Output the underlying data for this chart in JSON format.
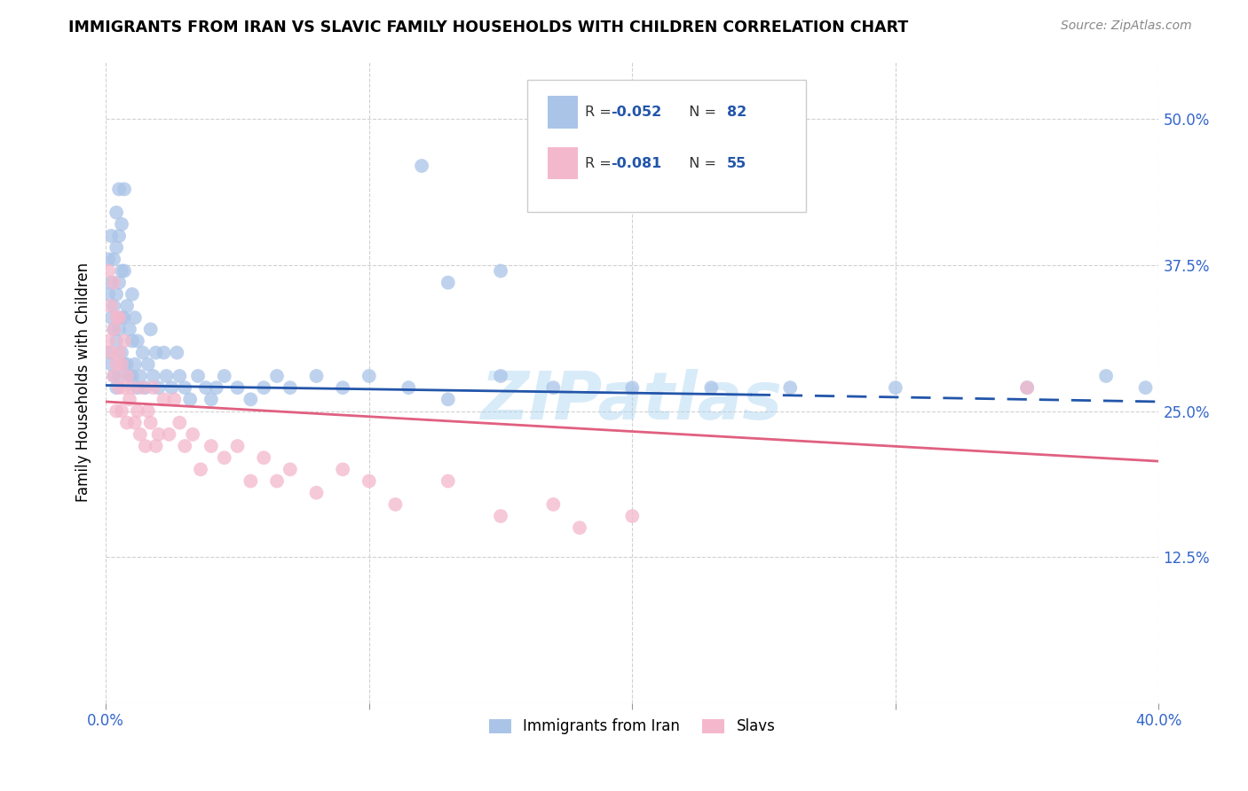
{
  "title": "IMMIGRANTS FROM IRAN VS SLAVIC FAMILY HOUSEHOLDS WITH CHILDREN CORRELATION CHART",
  "source": "Source: ZipAtlas.com",
  "ylabel": "Family Households with Children",
  "xlim": [
    0.0,
    0.4
  ],
  "ylim": [
    0.0,
    0.55
  ],
  "xtick_positions": [
    0.0,
    0.1,
    0.2,
    0.3,
    0.4
  ],
  "xtick_labels": [
    "0.0%",
    "",
    "",
    "",
    "40.0%"
  ],
  "ytick_positions": [
    0.0,
    0.125,
    0.25,
    0.375,
    0.5
  ],
  "ytick_labels": [
    "",
    "12.5%",
    "25.0%",
    "37.5%",
    "50.0%"
  ],
  "blue_scatter_color": "#aac4e8",
  "pink_scatter_color": "#f4b8cc",
  "blue_line_color": "#2255aa",
  "pink_line_color": "#e06080",
  "legend_R1": "-0.052",
  "legend_N1": "82",
  "legend_R2": "-0.081",
  "legend_N2": "55",
  "legend_label1": "Immigrants from Iran",
  "legend_label2": "Slavs",
  "watermark": "ZIPatlas",
  "iran_x": [
    0.001,
    0.001,
    0.001,
    0.002,
    0.002,
    0.002,
    0.002,
    0.003,
    0.003,
    0.003,
    0.003,
    0.004,
    0.004,
    0.004,
    0.004,
    0.004,
    0.005,
    0.005,
    0.005,
    0.005,
    0.005,
    0.006,
    0.006,
    0.006,
    0.006,
    0.007,
    0.007,
    0.007,
    0.007,
    0.008,
    0.008,
    0.009,
    0.009,
    0.01,
    0.01,
    0.01,
    0.011,
    0.011,
    0.012,
    0.012,
    0.013,
    0.014,
    0.015,
    0.016,
    0.017,
    0.018,
    0.019,
    0.02,
    0.022,
    0.023,
    0.025,
    0.027,
    0.028,
    0.03,
    0.032,
    0.035,
    0.038,
    0.04,
    0.042,
    0.045,
    0.05,
    0.055,
    0.06,
    0.065,
    0.07,
    0.08,
    0.09,
    0.1,
    0.115,
    0.13,
    0.15,
    0.17,
    0.2,
    0.23,
    0.26,
    0.3,
    0.35,
    0.38,
    0.395,
    0.15,
    0.13,
    0.12
  ],
  "iran_y": [
    0.3,
    0.35,
    0.38,
    0.29,
    0.33,
    0.36,
    0.4,
    0.28,
    0.32,
    0.34,
    0.38,
    0.27,
    0.31,
    0.35,
    0.39,
    0.42,
    0.28,
    0.32,
    0.36,
    0.4,
    0.44,
    0.3,
    0.33,
    0.37,
    0.41,
    0.29,
    0.33,
    0.37,
    0.44,
    0.29,
    0.34,
    0.28,
    0.32,
    0.28,
    0.31,
    0.35,
    0.29,
    0.33,
    0.27,
    0.31,
    0.28,
    0.3,
    0.27,
    0.29,
    0.32,
    0.28,
    0.3,
    0.27,
    0.3,
    0.28,
    0.27,
    0.3,
    0.28,
    0.27,
    0.26,
    0.28,
    0.27,
    0.26,
    0.27,
    0.28,
    0.27,
    0.26,
    0.27,
    0.28,
    0.27,
    0.28,
    0.27,
    0.28,
    0.27,
    0.26,
    0.28,
    0.27,
    0.27,
    0.27,
    0.27,
    0.27,
    0.27,
    0.28,
    0.27,
    0.37,
    0.36,
    0.46
  ],
  "slavic_x": [
    0.001,
    0.001,
    0.002,
    0.002,
    0.003,
    0.003,
    0.003,
    0.004,
    0.004,
    0.004,
    0.005,
    0.005,
    0.005,
    0.006,
    0.006,
    0.007,
    0.007,
    0.008,
    0.008,
    0.009,
    0.01,
    0.011,
    0.012,
    0.013,
    0.014,
    0.015,
    0.016,
    0.017,
    0.018,
    0.019,
    0.02,
    0.022,
    0.024,
    0.026,
    0.028,
    0.03,
    0.033,
    0.036,
    0.04,
    0.045,
    0.05,
    0.055,
    0.06,
    0.065,
    0.07,
    0.08,
    0.09,
    0.1,
    0.11,
    0.13,
    0.15,
    0.17,
    0.2,
    0.35,
    0.18
  ],
  "slavic_y": [
    0.31,
    0.37,
    0.3,
    0.34,
    0.28,
    0.32,
    0.36,
    0.29,
    0.33,
    0.25,
    0.3,
    0.27,
    0.33,
    0.29,
    0.25,
    0.31,
    0.27,
    0.28,
    0.24,
    0.26,
    0.27,
    0.24,
    0.25,
    0.23,
    0.27,
    0.22,
    0.25,
    0.24,
    0.27,
    0.22,
    0.23,
    0.26,
    0.23,
    0.26,
    0.24,
    0.22,
    0.23,
    0.2,
    0.22,
    0.21,
    0.22,
    0.19,
    0.21,
    0.19,
    0.2,
    0.18,
    0.2,
    0.19,
    0.17,
    0.19,
    0.16,
    0.17,
    0.16,
    0.27,
    0.15
  ],
  "blue_trend_start_x": 0.0,
  "blue_trend_solid_end_x": 0.245,
  "blue_trend_dash_end_x": 0.4,
  "blue_trend_start_y": 0.272,
  "blue_trend_solid_end_y": 0.264,
  "blue_trend_dash_end_y": 0.258,
  "pink_trend_start_x": 0.0,
  "pink_trend_end_x": 0.4,
  "pink_trend_start_y": 0.258,
  "pink_trend_end_y": 0.207
}
